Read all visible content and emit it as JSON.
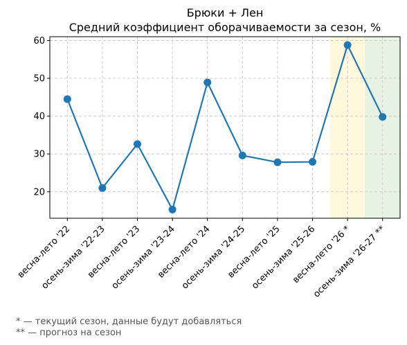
{
  "chart_data": {
    "type": "line",
    "title": "Брюки + Лен",
    "subtitle": "Средний коэффициент оборачиваемости за сезон, %",
    "xlabel": "",
    "ylabel": "",
    "categories": [
      "весна-лето '22",
      "осень-зима '22-23",
      "весна-лето '23",
      "осень-зима '23-24",
      "весна-лето '24",
      "осень-зима '24-25",
      "весна-лето '25",
      "осень-зима '25-26",
      "весна-лето '26 *",
      "осень-зима '26-27 **"
    ],
    "series": [
      {
        "values": [
          44.5,
          21.0,
          32.6,
          15.3,
          48.9,
          29.6,
          27.8,
          27.9,
          58.8,
          39.8
        ]
      }
    ],
    "ylim": [
      13,
      61
    ],
    "yticks": [
      20,
      30,
      40,
      50,
      60
    ],
    "grid": true,
    "highlights": [
      {
        "category": "весна-лето '26 *",
        "color": "#fff8dc"
      },
      {
        "category": "осень-зима '26-27 **",
        "color": "#e6f2e2"
      }
    ],
    "line_color": "#1f77b4"
  },
  "footnotes": {
    "current": "* — текущий сезон, данные будут добавляться",
    "forecast": "** — прогноз на сезон"
  }
}
